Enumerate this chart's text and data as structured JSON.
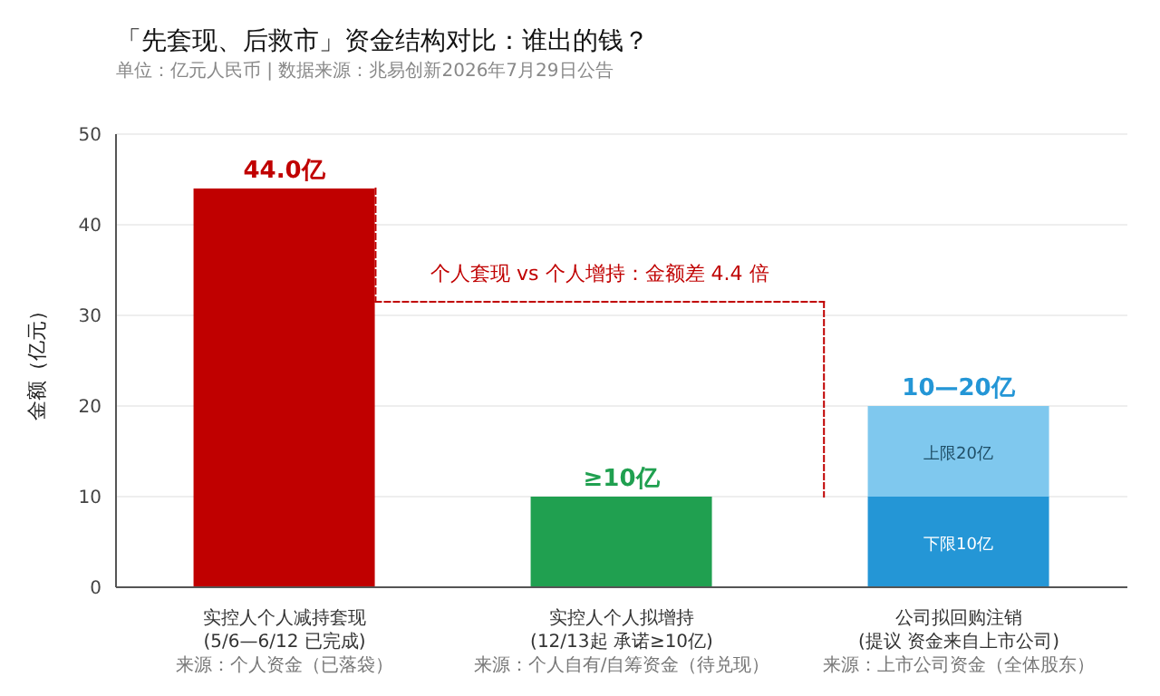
{
  "chart_data": {
    "type": "bar",
    "title": "「先套现、后救市」资金结构对比：谁出的钱？",
    "subtitle": "单位：亿元人民币 | 数据来源：兆易创新2026年7月29日公告",
    "ylabel": "金额（亿元）",
    "categories": [
      "实控人个人减持套现\n(5/6—6/12 已完成)\n来源：个人资金（已落袋）",
      "实控人个人拟增持\n(12/13起 承诺≥10亿)\n来源：个人自有/自筹资金（待兑现）",
      "公司拟回购注销\n(提议 资金来自上市公司)\n来源：上市公司资金（全体股东）"
    ],
    "stacked": true,
    "series": [
      {
        "colors": [
          "#c00000",
          "#20a050",
          "#2496d6"
        ],
        "values": [
          44,
          10,
          10
        ],
        "value_labels": [
          null,
          null,
          "下限10亿"
        ]
      },
      {
        "color": "#7fc8ee",
        "values": [
          null,
          null,
          10
        ],
        "value_labels": [
          null,
          null,
          "上限20亿"
        ]
      }
    ],
    "totals": [
      "44.0亿",
      "≥10亿",
      "10—20亿"
    ],
    "ylim": [
      0,
      50
    ],
    "yticks": [
      0,
      10,
      20,
      30,
      40,
      50
    ],
    "grid": "y",
    "annotations": [
      "个人套现 vs 个人增持：金额差 4.4 倍"
    ]
  }
}
